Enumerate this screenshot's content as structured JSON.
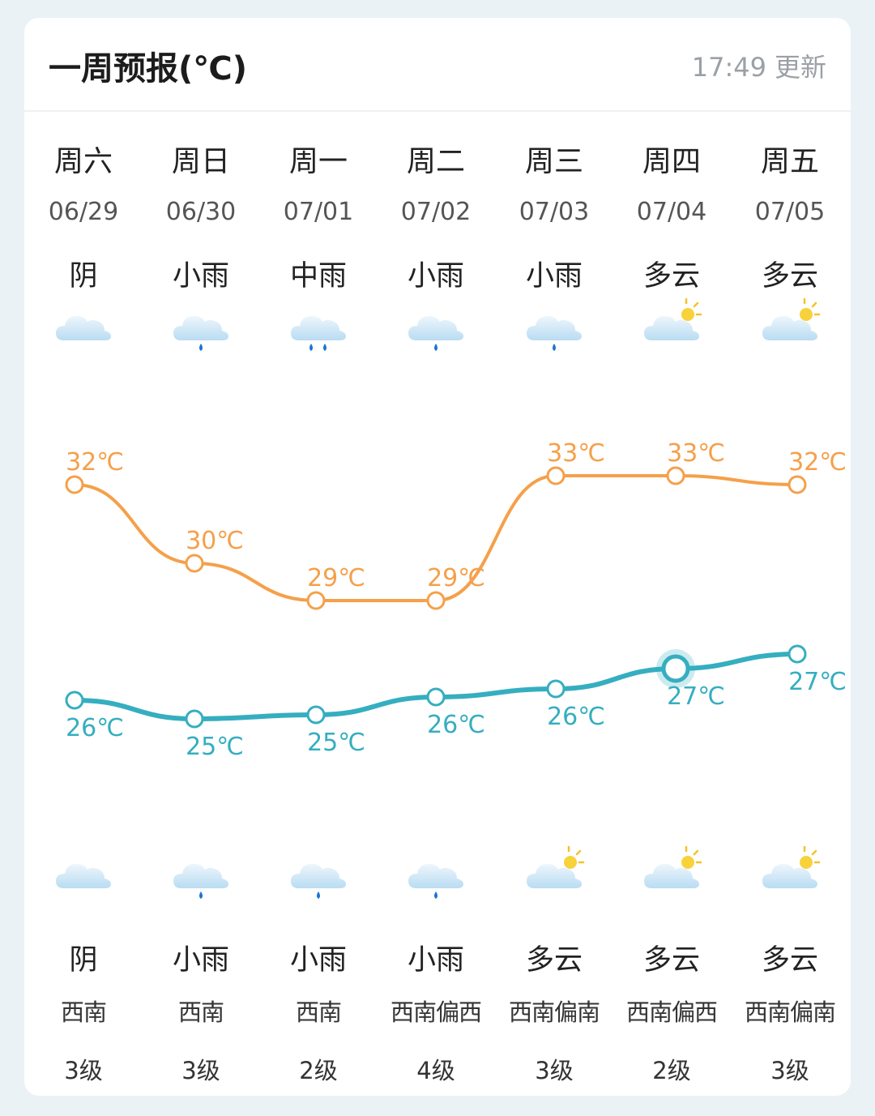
{
  "header": {
    "title": "一周预报(℃)",
    "update_time": "17:49",
    "update_label": "更新"
  },
  "days": [
    {
      "weekday": "周六",
      "date": "06/29",
      "day_cond": "阴",
      "day_icon": "overcast-icon",
      "night_icon": "overcast-icon",
      "night_cond": "阴",
      "wind_dir": "西南",
      "wind_level": "3级"
    },
    {
      "weekday": "周日",
      "date": "06/30",
      "day_cond": "小雨",
      "day_icon": "light-rain-icon",
      "night_icon": "light-rain-icon",
      "night_cond": "小雨",
      "wind_dir": "西南",
      "wind_level": "3级"
    },
    {
      "weekday": "周一",
      "date": "07/01",
      "day_cond": "中雨",
      "day_icon": "moderate-rain-icon",
      "night_icon": "light-rain-icon",
      "night_cond": "小雨",
      "wind_dir": "西南",
      "wind_level": "2级"
    },
    {
      "weekday": "周二",
      "date": "07/02",
      "day_cond": "小雨",
      "day_icon": "light-rain-icon",
      "night_icon": "light-rain-icon",
      "night_cond": "小雨",
      "wind_dir": "西南偏西",
      "wind_level": "4级"
    },
    {
      "weekday": "周三",
      "date": "07/03",
      "day_cond": "小雨",
      "day_icon": "light-rain-icon",
      "night_icon": "partly-cloudy-icon",
      "night_cond": "多云",
      "wind_dir": "西南偏南",
      "wind_level": "3级"
    },
    {
      "weekday": "周四",
      "date": "07/04",
      "day_cond": "多云",
      "day_icon": "partly-cloudy-icon",
      "night_icon": "partly-cloudy-icon",
      "night_cond": "多云",
      "wind_dir": "西南偏西",
      "wind_level": "2级"
    },
    {
      "weekday": "周五",
      "date": "07/05",
      "day_cond": "多云",
      "day_icon": "partly-cloudy-icon",
      "night_icon": "partly-cloudy-icon",
      "night_cond": "多云",
      "wind_dir": "西南偏南",
      "wind_level": "3级"
    }
  ],
  "chart_data": {
    "type": "line",
    "unit": "℃",
    "categories": [
      "06/29",
      "06/30",
      "07/01",
      "07/02",
      "07/03",
      "07/04",
      "07/05"
    ],
    "series": [
      {
        "values": [
          32,
          30,
          29,
          29,
          33,
          33,
          32
        ],
        "color": "#f5a04a"
      },
      {
        "values": [
          26,
          25,
          25,
          26,
          26,
          27,
          27
        ],
        "color": "#35aec0"
      }
    ],
    "highlight_index": 5,
    "grid": false,
    "labels": {
      "high": [
        "32℃",
        "30℃",
        "29℃",
        "29℃",
        "33℃",
        "33℃",
        "32℃"
      ],
      "low": [
        "26℃",
        "25℃",
        "25℃",
        "26℃",
        "26℃",
        "27℃",
        "27℃"
      ]
    }
  }
}
